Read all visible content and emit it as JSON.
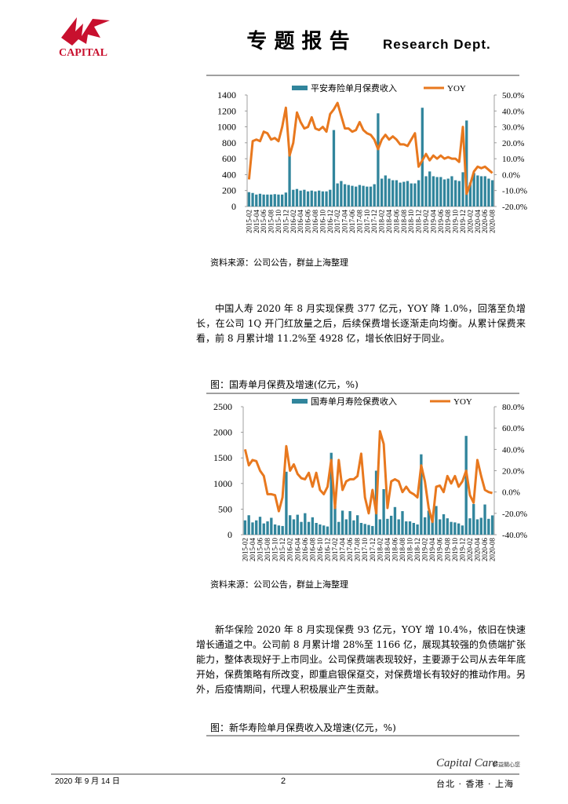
{
  "header": {
    "logo": "CAPITAL",
    "title": "专 题 报 告",
    "dept": "Research Dept."
  },
  "document": {
    "source_1": "资料来源：公司公告，群益上海整理",
    "paragraph_1": "中国人寿 2020 年 8 月实现保费 377 亿元，YOY 降 1.0%，回落至负增长，在公司 1Q 开门红放量之后，后续保费增长逐渐走向均衡。从累计保费来看，前 8 月累计增 11.2%至 4928 亿，增长依旧好于同业。",
    "caption_2": "图：国寿单月保费及增速(亿元，%)",
    "source_2": "资料来源：公司公告，群益上海整理",
    "paragraph_2": "新华保险 2020 年 8 月实现保费 93 亿元，YOY 增 10.4%，依旧在快速增长通道之中。公司前 8 月累计增 28%至 1166 亿，展现其较强的负债端扩张能力，整体表现好于上市同业。公司保费端表现较好，主要源于公司从去年年底开始，保费策略有所改变，即重启银保趸交，对保费增长有较好的推动作用。另外，后疫情期间，代理人积极展业产生贡献。",
    "caption_3": "图：新华寿险单月保费收入及增速(亿元，%)"
  },
  "footer": {
    "date": "2020 年 9 月 14 日",
    "page": "2",
    "brand": "Capital Care",
    "brand_sub": "群益關心您",
    "cities": "台北 · 香港 · 上海"
  },
  "chart_data": [
    {
      "type": "combo",
      "categories": [
        "2015-02",
        null,
        "2015-04",
        null,
        "2015-06",
        null,
        "2015-08",
        null,
        "2015-10",
        null,
        "2015-12",
        null,
        "2016-02",
        null,
        "2016-04",
        null,
        "2016-06",
        null,
        "2016-08",
        null,
        "2016-10",
        null,
        "2016-12",
        null,
        "2017-02",
        null,
        "2017-04",
        null,
        "2017-06",
        null,
        "2017-08",
        null,
        "2017-10",
        null,
        "2017-12",
        null,
        "2018-02",
        null,
        "2018-04",
        null,
        "2018-06",
        null,
        "2018-08",
        null,
        "2018-10",
        null,
        "2018-12",
        null,
        "2019-02",
        null,
        "2019-04",
        null,
        "2019-06",
        null,
        "2019-08",
        null,
        "2019-10",
        null,
        "2019-12",
        null,
        "2020-02",
        null,
        "2020-04",
        null,
        "2020-06",
        null,
        "2020-08"
      ],
      "series": [
        {
          "name": "平安寿险单月保费收入",
          "color": "#31859c",
          "values": [
            180,
            170,
            150,
            160,
            150,
            150,
            150,
            155,
            150,
            150,
            175,
            700,
            210,
            220,
            200,
            210,
            190,
            200,
            190,
            200,
            190,
            190,
            210,
            960,
            290,
            320,
            280,
            270,
            260,
            250,
            270,
            260,
            250,
            250,
            280,
            1170,
            350,
            390,
            350,
            330,
            330,
            300,
            310,
            320,
            290,
            290,
            330,
            1240,
            380,
            440,
            380,
            370,
            370,
            340,
            350,
            380,
            330,
            320,
            430,
            1080,
            300,
            420,
            390,
            380,
            380,
            350,
            330
          ]
        },
        {
          "name": "YOY",
          "color": "#e8781e",
          "axis": "y2",
          "values": [
            -3,
            21,
            22,
            21,
            27,
            26,
            22,
            23,
            21,
            30,
            42,
            12,
            20,
            39,
            33,
            29,
            30,
            36,
            29,
            28,
            30,
            27,
            38,
            41,
            45,
            37,
            29,
            29,
            27,
            28,
            33,
            28,
            26,
            25,
            22,
            16,
            22,
            25,
            22,
            24,
            22,
            19,
            19,
            18,
            22,
            26,
            5,
            9,
            13,
            9,
            12,
            10,
            12,
            10,
            11,
            10,
            10,
            8,
            30,
            -12,
            -6,
            2,
            5,
            4,
            5,
            3,
            1
          ]
        }
      ],
      "ylim": [
        0,
        1400
      ],
      "yticks": [
        0,
        200,
        400,
        600,
        800,
        1000,
        1200,
        1400
      ],
      "y2lim": [
        -20,
        50
      ],
      "y2ticks": [
        {
          "value": -20,
          "label": "-20.0%"
        },
        {
          "value": -10,
          "label": "-10.0%"
        },
        {
          "value": 0,
          "label": "0.0%"
        },
        {
          "value": 10,
          "label": "10.0%"
        },
        {
          "value": 20,
          "label": "20.0%"
        },
        {
          "value": 30,
          "label": "30.0%"
        },
        {
          "value": 40,
          "label": "40.0%"
        },
        {
          "value": 50,
          "label": "50.0%"
        }
      ],
      "grid": false
    },
    {
      "type": "combo",
      "categories": [
        "2015-02",
        null,
        "2015-04",
        null,
        "2015-06",
        null,
        "2015-08",
        null,
        "2015-10",
        null,
        "2015-12",
        null,
        "2016-02",
        null,
        "2016-04",
        null,
        "2016-06",
        null,
        "2016-08",
        null,
        "2016-10",
        null,
        "2016-12",
        null,
        "2017-02",
        null,
        "2017-04",
        null,
        "2017-06",
        null,
        "2017-08",
        null,
        "2017-10",
        null,
        "2017-12",
        null,
        "2018-02",
        null,
        "2018-04",
        null,
        "2018-06",
        null,
        "2018-08",
        null,
        "2018-10",
        null,
        "2018-12",
        null,
        "2019-02",
        null,
        "2019-04",
        null,
        "2019-06",
        null,
        "2019-08",
        null,
        "2019-10",
        null,
        "2019-12",
        null,
        "2020-02",
        null,
        "2020-04",
        null,
        "2020-06",
        null,
        "2020-08"
      ],
      "series": [
        {
          "name": "国寿单月寿险保费收入",
          "color": "#31859c",
          "values": [
            280,
            380,
            240,
            280,
            350,
            220,
            260,
            330,
            200,
            180,
            170,
            1230,
            380,
            300,
            390,
            250,
            420,
            250,
            340,
            230,
            200,
            180,
            160,
            1600,
            560,
            250,
            470,
            300,
            460,
            280,
            380,
            230,
            210,
            190,
            170,
            1250,
            300,
            890,
            310,
            370,
            540,
            300,
            460,
            260,
            260,
            230,
            200,
            1570,
            340,
            470,
            320,
            560,
            300,
            400,
            320,
            250,
            240,
            220,
            180,
            1930,
            320,
            600,
            300,
            330,
            590,
            310,
            377
          ]
        },
        {
          "name": "YOY",
          "color": "#e8781e",
          "axis": "y2",
          "values": [
            40,
            25,
            30,
            29,
            20,
            15,
            -2,
            -2,
            -3,
            -18,
            -5,
            43,
            20,
            26,
            17,
            13,
            12,
            18,
            5,
            18,
            2,
            -2,
            5,
            30,
            -15,
            30,
            2,
            10,
            12,
            12,
            15,
            36,
            -5,
            -20,
            2,
            -20,
            57,
            45,
            -15,
            10,
            12,
            10,
            0,
            5,
            0,
            -2,
            -5,
            25,
            10,
            -15,
            -28,
            5,
            6,
            0,
            15,
            8,
            15,
            5,
            10,
            20,
            -3,
            -10,
            30,
            15,
            2,
            0,
            -1
          ]
        }
      ],
      "ylim": [
        0,
        2500
      ],
      "yticks": [
        0,
        500,
        1000,
        1500,
        2000,
        2500
      ],
      "y2lim": [
        -40,
        80
      ],
      "y2ticks": [
        {
          "value": -40,
          "label": "-40.0%"
        },
        {
          "value": -20,
          "label": "-20.0%"
        },
        {
          "value": 0,
          "label": "0.0%"
        },
        {
          "value": 20,
          "label": "20.0%"
        },
        {
          "value": 40,
          "label": "40.0%"
        },
        {
          "value": 60,
          "label": "60.0%"
        },
        {
          "value": 80,
          "label": "80.0%"
        }
      ],
      "grid": false
    }
  ]
}
